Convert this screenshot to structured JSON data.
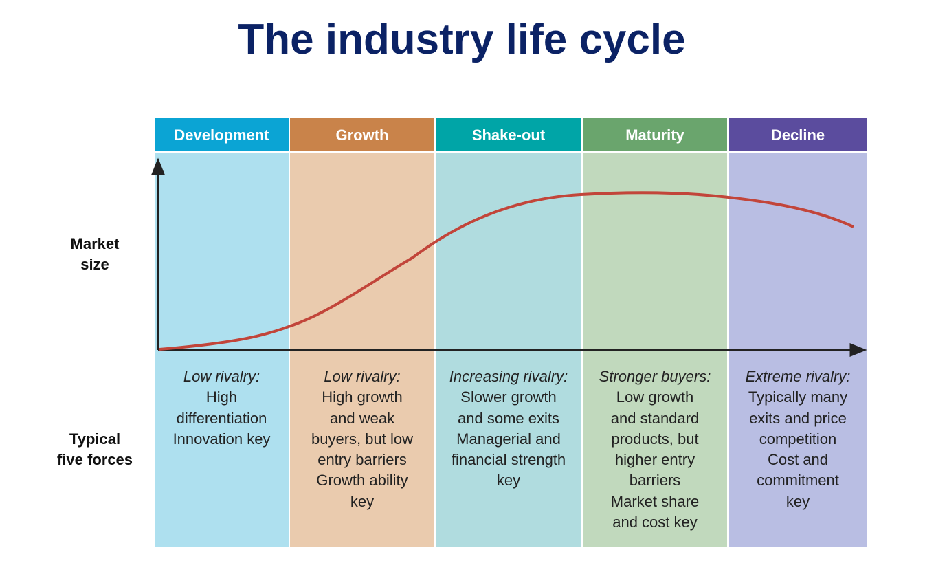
{
  "title": "The industry life cycle",
  "row_labels": {
    "market_size": [
      "Market",
      "size"
    ],
    "five_forces": [
      "Typical",
      "five forces"
    ]
  },
  "stages": [
    {
      "name": "Development",
      "lead": "Low rivalry:",
      "lines": [
        "High",
        "differentiation",
        "Innovation key"
      ]
    },
    {
      "name": "Growth",
      "lead": "Low rivalry:",
      "lines": [
        "High growth",
        "and weak",
        "buyers, but low",
        "entry barriers",
        "Growth ability",
        "key"
      ]
    },
    {
      "name": "Shake-out",
      "lead": "Increasing rivalry:",
      "lines": [
        "Slower growth",
        "and some exits",
        "Managerial and",
        "financial strength",
        "key"
      ]
    },
    {
      "name": "Maturity",
      "lead": "Stronger buyers:",
      "lines": [
        "Low growth",
        "and standard",
        "products, but",
        "higher entry",
        "barriers",
        "Market share",
        "and cost key"
      ]
    },
    {
      "name": "Decline",
      "lead": "Extreme rivalry:",
      "lines": [
        "Typically many",
        "exits and price",
        "competition",
        "Cost and",
        "commitment",
        "key"
      ]
    }
  ]
}
